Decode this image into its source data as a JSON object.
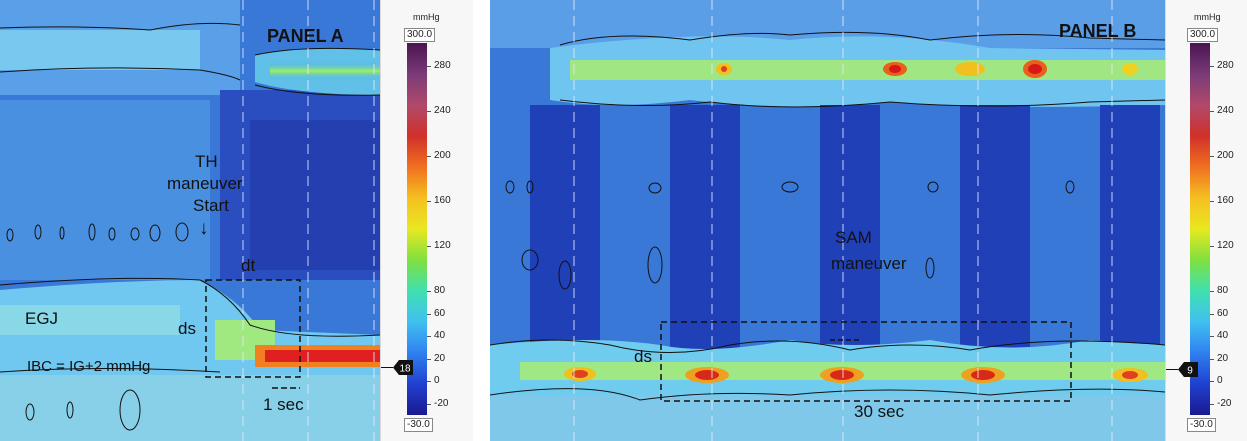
{
  "colorbar": {
    "unit": "mmHg",
    "max": "300.0",
    "min": "-30.0",
    "ticks": [
      "280",
      "240",
      "200",
      "160",
      "120",
      "80",
      "60",
      "40",
      "20",
      "0",
      "-20"
    ],
    "tick_values": [
      280,
      240,
      200,
      160,
      120,
      80,
      60,
      40,
      20,
      0,
      -20
    ],
    "gradient_colors": [
      "#4a1450",
      "#7a3a78",
      "#b04a6a",
      "#d0302a",
      "#f07020",
      "#f5c020",
      "#e8e820",
      "#80e040",
      "#40e0b0",
      "#40c0f0",
      "#3080f0",
      "#2040d0",
      "#1a1a90"
    ]
  },
  "panelA": {
    "title": "PANEL A",
    "annotation_th": [
      "TH",
      "maneuver",
      "Start"
    ],
    "arrow": "↓",
    "label_dt": "dt",
    "label_egj": "EGJ",
    "label_ds": "ds",
    "label_ibc": "IBC = IG+2 mmHg",
    "label_time": "1 sec",
    "marker_value": "18"
  },
  "panelB": {
    "title": "PANEL B",
    "annotation_sam": [
      "SAM",
      "maneuver"
    ],
    "label_ds": "ds",
    "label_time": "30 sec",
    "marker_value": "9"
  },
  "icons": [
    "down-arrow-icon",
    "pointer-marker-icon"
  ]
}
